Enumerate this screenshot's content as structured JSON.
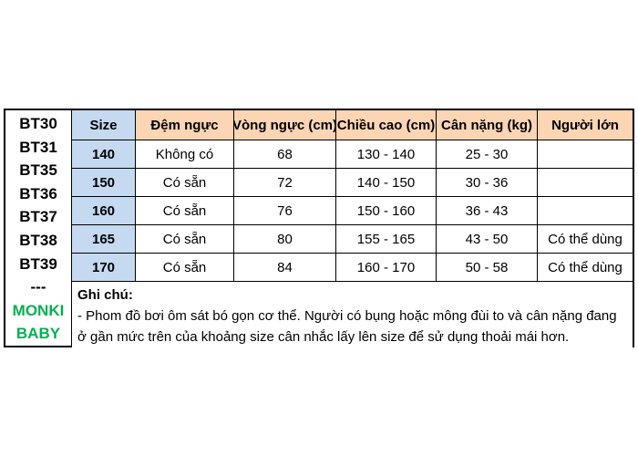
{
  "colors": {
    "header_peach": "#FCD5B4",
    "size_blue": "#C5D9F1",
    "brand_green": "#00B050",
    "grid_line": "#000000"
  },
  "left_column": {
    "items": [
      "BT30",
      "BT31",
      "BT35",
      "BT36",
      "BT37",
      "BT38",
      "BT39",
      "---",
      "MONKI",
      "BABY"
    ]
  },
  "size_table": {
    "headers": [
      "Size",
      "Đệm ngực",
      "Vòng ngực (cm)",
      "Chiều cao (cm)",
      "Cân nặng (kg)",
      "Người lớn"
    ],
    "rows": [
      [
        "140",
        "Không có",
        "68",
        "130 - 140",
        "25 - 30",
        ""
      ],
      [
        "150",
        "Có sẵn",
        "72",
        "140 - 150",
        "30 - 36",
        ""
      ],
      [
        "160",
        "Có sẵn",
        "76",
        "150 - 160",
        "36 - 43",
        ""
      ],
      [
        "165",
        "Có sẵn",
        "80",
        "155 - 165",
        "43 - 50",
        "Có thể dùng"
      ],
      [
        "170",
        "Có sẵn",
        "84",
        "160 - 170",
        "50 - 58",
        "Có thể dùng"
      ]
    ]
  },
  "note": {
    "title": "Ghi chú:",
    "body": "- Phom đồ bơi ôm sát bó gọn cơ thể. Người có bụng hoặc mông đùi to và cân nặng đang ở gần mức trên của khoảng size cân nhắc lấy lên size để sử dụng thoải mái hơn."
  }
}
